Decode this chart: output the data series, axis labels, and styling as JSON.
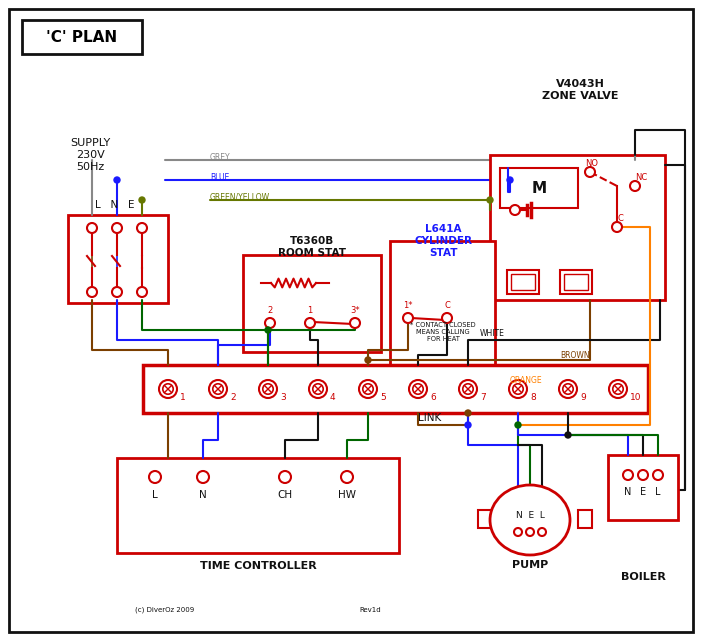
{
  "bg": "#ffffff",
  "red": "#cc0000",
  "blue": "#1a1aff",
  "green": "#006600",
  "grey": "#888888",
  "brown": "#7B3F00",
  "black": "#111111",
  "orange": "#FF8000",
  "gy": "#667700",
  "title": "'C' PLAN",
  "zone_valve": "V4043H\nZONE VALVE",
  "room_stat_title": "T6360B\nROOM STAT",
  "cyl_stat_title": "L641A\nCYLINDER\nSTAT",
  "time_ctrl": "TIME CONTROLLER",
  "pump": "PUMP",
  "boiler": "BOILER",
  "supply": "SUPPLY\n230V\n50Hz",
  "contact_note": "* CONTACT CLOSED\nMEANS CALLING\nFOR HEAT",
  "link": "LINK",
  "copyright": "(c) DiverOz 2009",
  "rev": "Rev1d"
}
